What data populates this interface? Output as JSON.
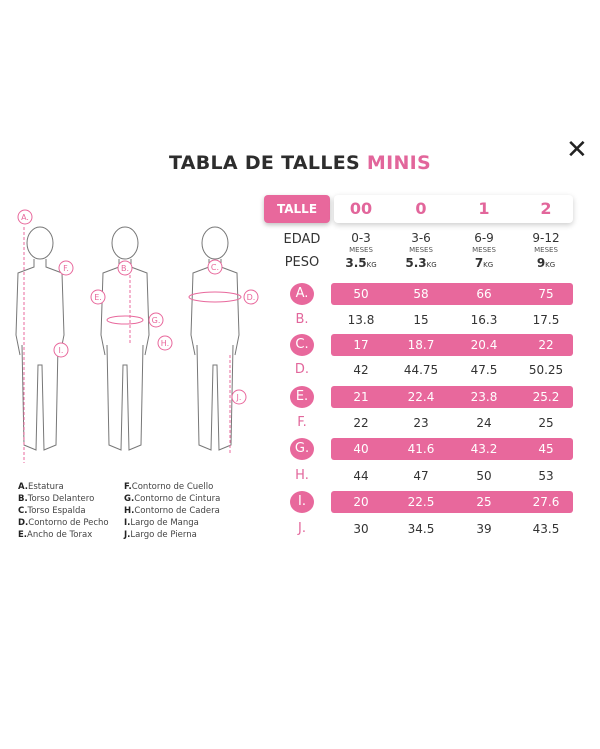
{
  "title": {
    "main": "TABLA DE TALLES",
    "accent": "MINIS"
  },
  "close_icon": "close-icon",
  "accent_color": "#e8689c",
  "header": {
    "talle_label": "TALLE",
    "sizes": [
      "00",
      "0",
      "1",
      "2"
    ]
  },
  "edad": {
    "label": "EDAD",
    "values": [
      "0-3",
      "3-6",
      "6-9",
      "9-12"
    ],
    "unit": "MESES"
  },
  "peso": {
    "label": "PESO",
    "values": [
      "3.5",
      "5.3",
      "7",
      "9"
    ],
    "unit": "KG"
  },
  "rows": [
    {
      "label": "A.",
      "values": [
        "50",
        "58",
        "66",
        "75"
      ],
      "highlight": true
    },
    {
      "label": "B.",
      "values": [
        "13.8",
        "15",
        "16.3",
        "17.5"
      ],
      "highlight": false
    },
    {
      "label": "C.",
      "values": [
        "17",
        "18.7",
        "20.4",
        "22"
      ],
      "highlight": true
    },
    {
      "label": "D.",
      "values": [
        "42",
        "44.75",
        "47.5",
        "50.25"
      ],
      "highlight": false
    },
    {
      "label": "E.",
      "values": [
        "21",
        "22.4",
        "23.8",
        "25.2"
      ],
      "highlight": true
    },
    {
      "label": "F.",
      "values": [
        "22",
        "23",
        "24",
        "25"
      ],
      "highlight": false
    },
    {
      "label": "G.",
      "values": [
        "40",
        "41.6",
        "43.2",
        "45"
      ],
      "highlight": true
    },
    {
      "label": "H.",
      "values": [
        "44",
        "47",
        "50",
        "53"
      ],
      "highlight": false
    },
    {
      "label": "I.",
      "values": [
        "20",
        "22.5",
        "25",
        "27.6"
      ],
      "highlight": true
    },
    {
      "label": "J.",
      "values": [
        "30",
        "34.5",
        "39",
        "43.5"
      ],
      "highlight": false
    }
  ],
  "figure_markers": [
    "A.",
    "F.",
    "I.",
    "B.",
    "E.",
    "G.",
    "H.",
    "C.",
    "D.",
    "J."
  ],
  "legend": {
    "left": [
      {
        "k": "A.",
        "t": "Estatura"
      },
      {
        "k": "B.",
        "t": "Torso Delantero"
      },
      {
        "k": "C.",
        "t": "Torso Espalda"
      },
      {
        "k": "D.",
        "t": "Contorno de Pecho"
      },
      {
        "k": "E.",
        "t": "Ancho de Torax"
      }
    ],
    "right": [
      {
        "k": "F.",
        "t": "Contorno de Cuello"
      },
      {
        "k": "G.",
        "t": "Contorno de Cintura"
      },
      {
        "k": "H.",
        "t": "Contorno de Cadera"
      },
      {
        "k": "I.",
        "t": "Largo de Manga"
      },
      {
        "k": "J.",
        "t": "Largo de Pierna"
      }
    ]
  }
}
